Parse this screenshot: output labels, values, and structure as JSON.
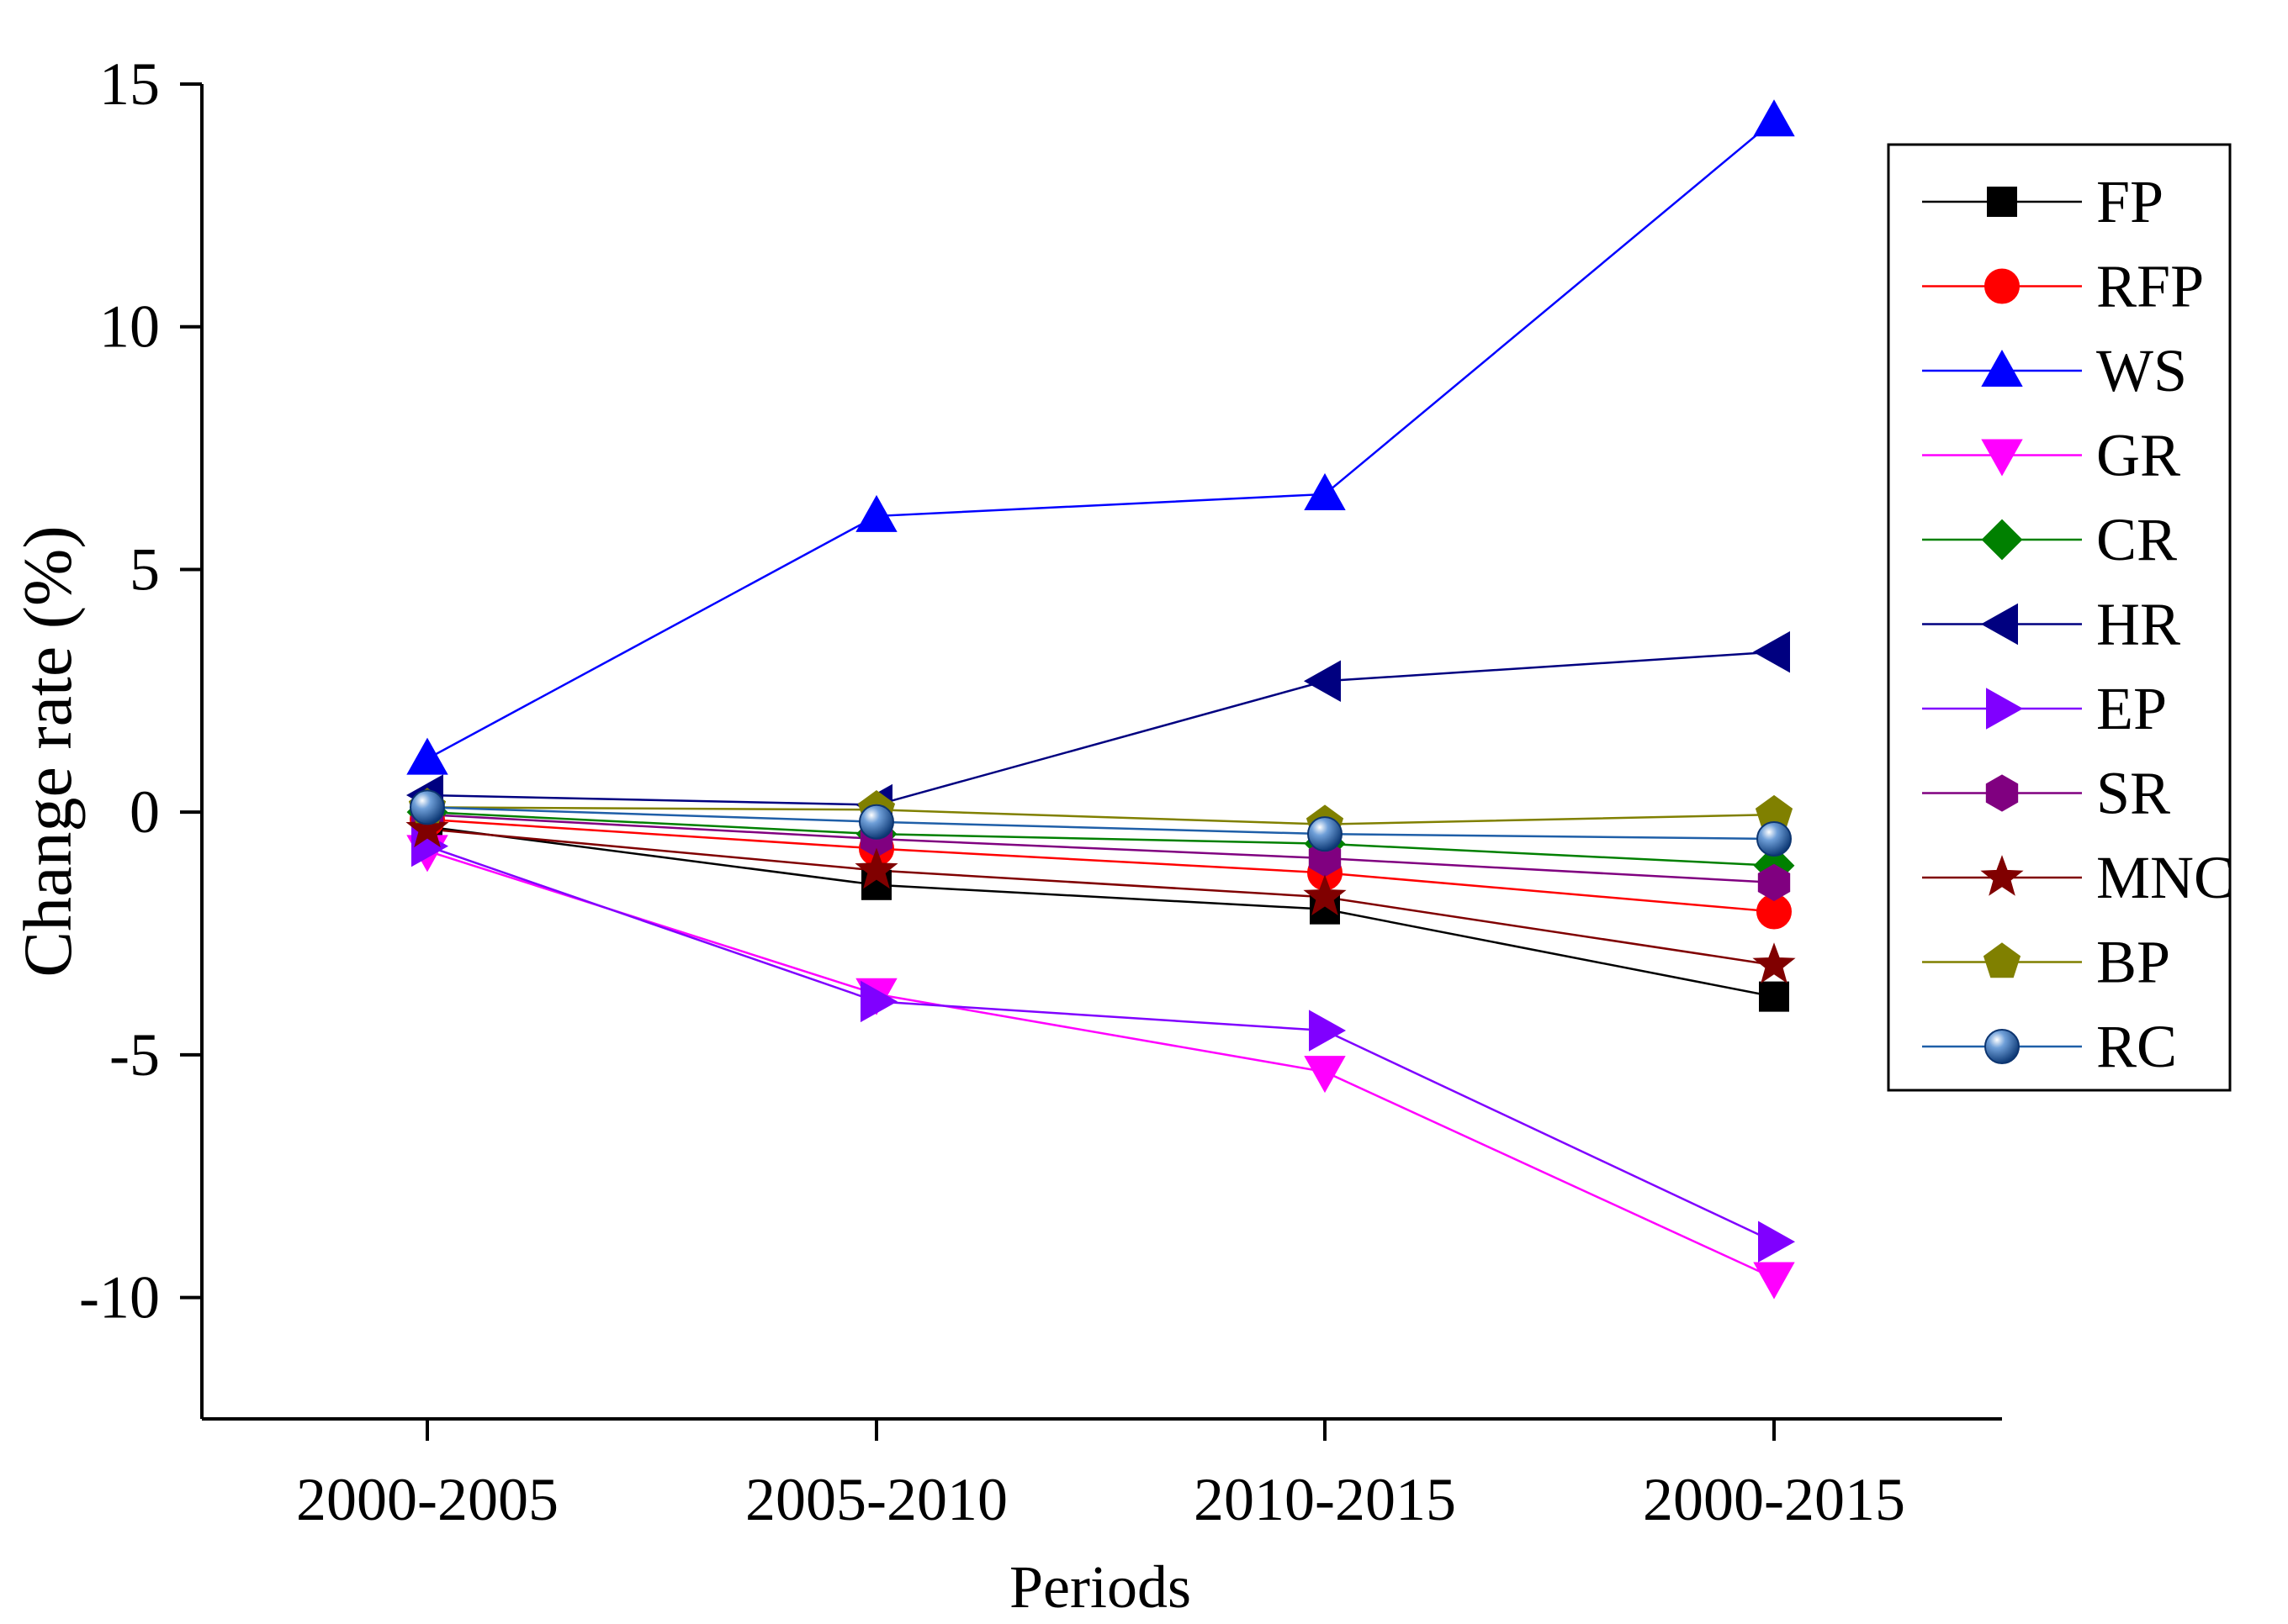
{
  "chart_data": {
    "type": "line",
    "title": "",
    "xlabel": "Periods",
    "ylabel": "Change rate (%)",
    "categories": [
      "2000-2005",
      "2005-2010",
      "2010-2015",
      "2000-2015"
    ],
    "ylim": [
      -12.5,
      15
    ],
    "yticks": [
      -10,
      -5,
      0,
      5,
      10,
      15
    ],
    "ytick_labels": [
      "-10",
      "-5",
      "0",
      "5",
      "10",
      "15"
    ],
    "grid": false,
    "legend_position": "top-right",
    "series": [
      {
        "name": "FP",
        "color": "#000000",
        "marker": "square",
        "values": [
          -0.3,
          -1.5,
          -2.0,
          -3.8
        ]
      },
      {
        "name": "RFP",
        "color": "#ff0000",
        "marker": "circle",
        "values": [
          -0.15,
          -0.75,
          -1.25,
          -2.05
        ]
      },
      {
        "name": "WS",
        "color": "#0000ff",
        "marker": "triangle-up",
        "values": [
          1.1,
          6.1,
          6.55,
          14.25
        ]
      },
      {
        "name": "GR",
        "color": "#ff00ff",
        "marker": "triangle-down",
        "values": [
          -0.8,
          -3.75,
          -5.35,
          -9.6
        ]
      },
      {
        "name": "CR",
        "color": "#008000",
        "marker": "diamond",
        "values": [
          0.0,
          -0.45,
          -0.65,
          -1.1
        ]
      },
      {
        "name": "HR",
        "color": "#000080",
        "marker": "triangle-left",
        "values": [
          0.35,
          0.15,
          2.7,
          3.3
        ]
      },
      {
        "name": "EP",
        "color": "#8000ff",
        "marker": "triangle-right",
        "values": [
          -0.7,
          -3.9,
          -4.5,
          -8.85
        ]
      },
      {
        "name": "SR",
        "color": "#800080",
        "marker": "hexagon",
        "values": [
          -0.05,
          -0.55,
          -0.95,
          -1.45
        ]
      },
      {
        "name": "MNC",
        "color": "#800000",
        "marker": "star",
        "values": [
          -0.35,
          -1.2,
          -1.75,
          -3.15
        ]
      },
      {
        "name": "BP",
        "color": "#808000",
        "marker": "pentagon",
        "values": [
          0.1,
          0.05,
          -0.25,
          -0.05
        ]
      },
      {
        "name": "RC",
        "color": "#1f5fa8",
        "marker": "sphere",
        "values": [
          0.1,
          -0.2,
          -0.45,
          -0.55
        ]
      }
    ]
  }
}
